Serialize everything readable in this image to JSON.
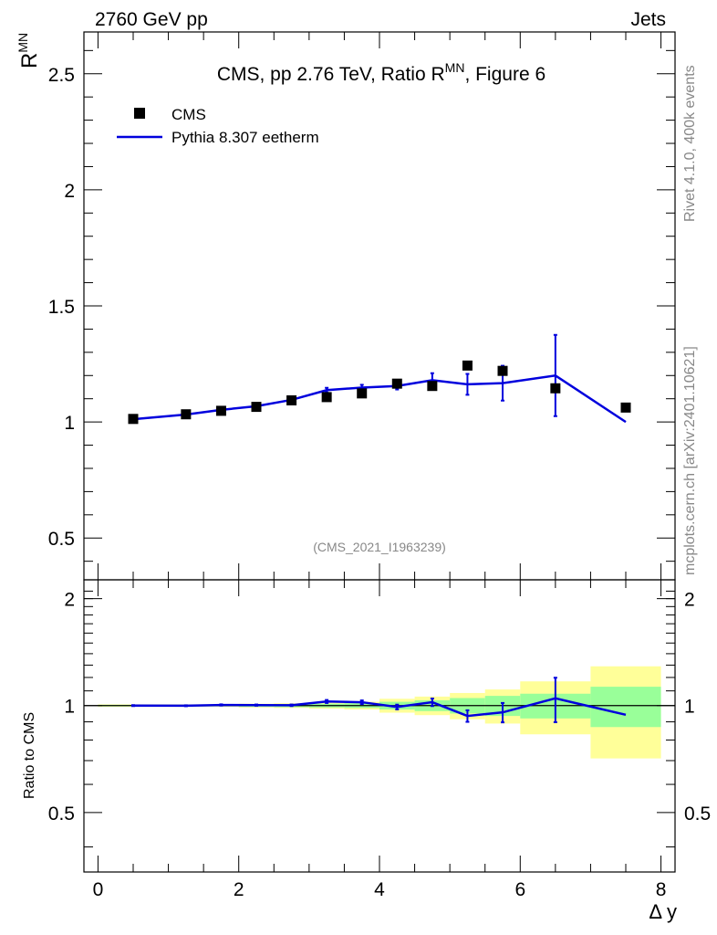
{
  "header": {
    "left": "2760 GeV pp",
    "right": "Jets"
  },
  "side_labels": {
    "rivet": "Rivet 4.1.0,  400k events",
    "mcplots": "mcplots.cern.ch [arXiv:2401.10621]"
  },
  "colors": {
    "cms": "#000000",
    "pythia": "#0000dd",
    "band_inner": "#99ff99",
    "band_outer": "#ffff99",
    "watermark": "#888888"
  },
  "chart_data": [
    {
      "type": "scatter",
      "title_main": "CMS, pp 2.76 TeV, Ratio R",
      "title_sup": "MN",
      "title_tail": ", Figure 6",
      "ylabel_main": "R",
      "ylabel_sup": "MN",
      "xlabel": "Δ y",
      "watermark": "(CMS_2021_I1963239)",
      "xlim": [
        -0.2,
        8.2
      ],
      "ylim": [
        0.32,
        2.68
      ],
      "yticks": [
        0.5,
        1,
        1.5,
        2,
        2.5
      ],
      "ytick_labels": [
        "0.5",
        "1",
        "1.5",
        "2",
        "2.5"
      ],
      "legend": [
        {
          "name": "CMS",
          "kind": "marker"
        },
        {
          "name": "Pythia 8.307 eetherm",
          "kind": "line"
        }
      ],
      "series": [
        {
          "name": "CMS",
          "x": [
            0.5,
            1.25,
            1.75,
            2.25,
            2.75,
            3.25,
            3.75,
            4.25,
            4.75,
            5.25,
            5.75,
            6.5,
            7.5
          ],
          "y": [
            1.013,
            1.033,
            1.048,
            1.065,
            1.093,
            1.107,
            1.123,
            1.165,
            1.155,
            1.243,
            1.22,
            1.145,
            1.062
          ]
        },
        {
          "name": "Pythia 8.307 eetherm",
          "x": [
            0.5,
            1.25,
            1.75,
            2.25,
            2.75,
            3.25,
            3.75,
            4.25,
            4.75,
            5.25,
            5.75,
            6.5,
            7.5
          ],
          "y": [
            1.012,
            1.032,
            1.052,
            1.068,
            1.095,
            1.137,
            1.148,
            1.155,
            1.18,
            1.162,
            1.167,
            1.2,
            1.0
          ],
          "err": [
            0.003,
            0.003,
            0.004,
            0.004,
            0.005,
            0.01,
            0.012,
            0.015,
            0.03,
            0.045,
            0.075,
            0.175,
            0.0
          ]
        }
      ]
    },
    {
      "type": "line",
      "ylabel": "Ratio to CMS",
      "xlabel": "Δ y",
      "xlim": [
        -0.2,
        8.2
      ],
      "ylim": [
        0.34,
        2.26
      ],
      "yticks": [
        0.5,
        1,
        2
      ],
      "ytick_labels": [
        "0.5",
        "1",
        "2"
      ],
      "xticks": [
        0,
        2,
        4,
        6,
        8
      ],
      "xtick_labels": [
        "0",
        "2",
        "4",
        "6",
        "8"
      ],
      "bands": {
        "x_edges": [
          0,
          1,
          1.5,
          2,
          2.5,
          3,
          3.5,
          4,
          4.5,
          5,
          5.5,
          6,
          7,
          8
        ],
        "inner": [
          0.005,
          0.005,
          0.005,
          0.008,
          0.01,
          0.012,
          0.015,
          0.025,
          0.035,
          0.05,
          0.065,
          0.08,
          0.13
        ],
        "outer": [
          0.008,
          0.008,
          0.008,
          0.012,
          0.015,
          0.02,
          0.025,
          0.045,
          0.06,
          0.085,
          0.11,
          0.17,
          0.29
        ]
      },
      "series": [
        {
          "name": "Pythia 8.307 eetherm",
          "x": [
            0.5,
            1.25,
            1.75,
            2.25,
            2.75,
            3.25,
            3.75,
            4.25,
            4.75,
            5.25,
            5.75,
            6.5,
            7.5
          ],
          "y": [
            1.0,
            0.999,
            1.004,
            1.003,
            1.002,
            1.027,
            1.022,
            0.991,
            1.022,
            0.935,
            0.957,
            1.048,
            0.942
          ],
          "err": [
            0.003,
            0.003,
            0.004,
            0.004,
            0.005,
            0.01,
            0.012,
            0.015,
            0.025,
            0.035,
            0.06,
            0.15,
            0.0
          ]
        }
      ]
    }
  ]
}
